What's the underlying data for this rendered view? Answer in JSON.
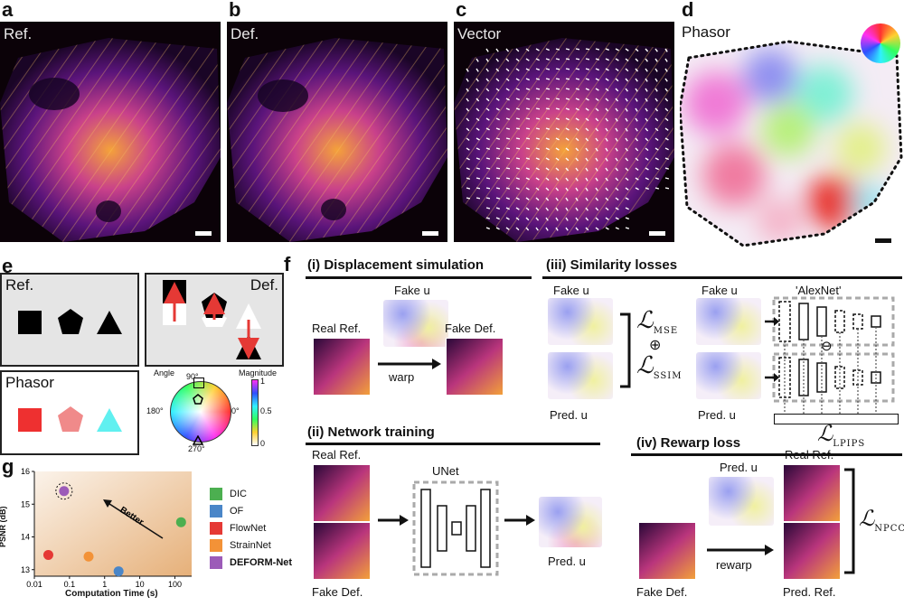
{
  "panels": {
    "a": {
      "letter": "a",
      "tag": "Ref."
    },
    "b": {
      "letter": "b",
      "tag": "Def."
    },
    "c": {
      "letter": "c",
      "tag": "Vector"
    },
    "d": {
      "letter": "d",
      "tag": "Phasor"
    },
    "e": {
      "letter": "e",
      "ref": "Ref.",
      "def": "Def.",
      "phasor": "Phasor",
      "angle_label": "Angle",
      "magnitude_label": "Magnitude",
      "deg90": "90°",
      "deg180": "180°",
      "deg0": "0°",
      "deg270": "270°",
      "mag_ticks": [
        "1",
        "0.5",
        "0"
      ]
    },
    "f": {
      "letter": "f",
      "i": {
        "title": "(i) Displacement simulation",
        "fake_u": "Fake u",
        "real_ref": "Real Ref.",
        "fake_def": "Fake Def.",
        "warp": "warp"
      },
      "ii": {
        "title": "(ii) Network training",
        "real_ref": "Real Ref.",
        "fake_def": "Fake Def.",
        "unet": "UNet",
        "pred_u": "Pred. u"
      },
      "iii": {
        "title": "(iii) Similarity losses",
        "fake_u": "Fake u",
        "pred_u": "Pred. u",
        "alexnet": "'AlexNet'",
        "loss_mse": "MSE",
        "loss_ssim": "SSIM",
        "loss_lpips": "LPIPS",
        "oplus": "⊕",
        "ominus": "⊖"
      },
      "iv": {
        "title": "(iv) Rewarp loss",
        "pred_u": "Pred. u",
        "real_ref": "Real Ref.",
        "pred_ref": "Pred. Ref.",
        "fake_def": "Fake Def.",
        "rewarp": "rewarp",
        "loss_npcc": "NPCC"
      }
    },
    "g": {
      "letter": "g",
      "better": "Better"
    }
  },
  "chart_data": {
    "type": "scatter",
    "xlabel": "Computation Time (s)",
    "ylabel": "PSNR (dB)",
    "xscale": "log",
    "xlim": [
      0.01,
      300
    ],
    "ylim": [
      12.8,
      16
    ],
    "xticks": [
      0.01,
      0.1,
      1,
      10,
      100
    ],
    "xtick_labels": [
      "0.01",
      "0.1",
      "1",
      "10",
      "100"
    ],
    "yticks": [
      13,
      14,
      15
    ],
    "ytick_labels": [
      "13",
      "14",
      "15",
      "16"
    ],
    "yticks_all": [
      13,
      14,
      15,
      16
    ],
    "annotation": "Better",
    "legend_position": "right",
    "series": [
      {
        "name": "DIC",
        "color": "#4caf50",
        "x": 150,
        "y": 14.45
      },
      {
        "name": "OF",
        "color": "#4a86c8",
        "x": 2.5,
        "y": 12.95
      },
      {
        "name": "FlowNet",
        "color": "#e53935",
        "x": 0.025,
        "y": 13.45
      },
      {
        "name": "StrainNet",
        "color": "#f39237",
        "x": 0.35,
        "y": 13.4
      },
      {
        "name": "DEFORM-Net",
        "color": "#9c5bb8",
        "x": 0.07,
        "y": 15.4
      }
    ]
  }
}
